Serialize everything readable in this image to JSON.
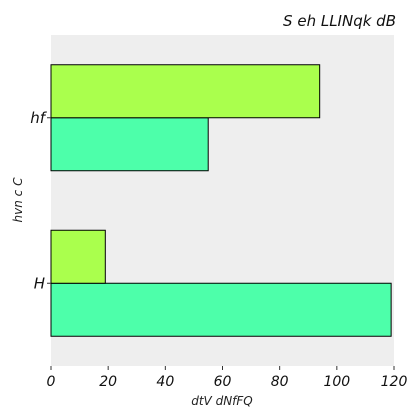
{
  "chart_data": {
    "type": "bar",
    "orientation": "horizontal",
    "title": "S eh LLINqk dB",
    "xlabel": "dtV dNfFQ",
    "ylabel": "hvn  c C",
    "categories": [
      "H",
      "hf"
    ],
    "x_ticks": [
      0,
      20,
      40,
      60,
      80,
      100,
      120
    ],
    "xlim": [
      0,
      120
    ],
    "grid": false,
    "legend": "none",
    "background_color": "#eeeeee",
    "series": [
      {
        "color": "#4dffaa",
        "values": [
          119,
          55
        ]
      },
      {
        "color": "#aaff4d",
        "values": [
          19,
          94
        ]
      }
    ]
  }
}
